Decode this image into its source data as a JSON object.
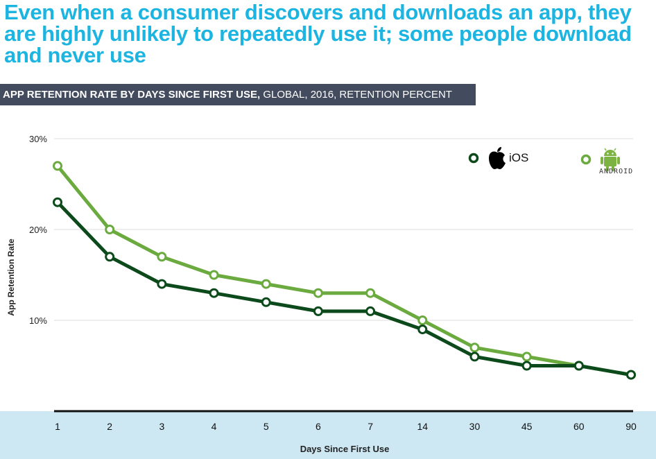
{
  "headline": "Even when a consumer discovers and downloads an app, they are highly unlikely to repeatedly use it; some people download and never use",
  "banner": {
    "bold": "APP RETENTION RATE BY DAYS SINCE FIRST USE,",
    "rest": " GLOBAL, 2016, RETENTION PERCENT"
  },
  "legend": {
    "ios_label": "iOS",
    "android_label": "ANDROID"
  },
  "colors": {
    "ios": "#0c4a1c",
    "android": "#6aaa3e",
    "headline": "#1cb4e0",
    "banner_bg": "#434b5e",
    "footer_bg": "#cde8f3"
  },
  "chart_data": {
    "type": "line",
    "title": "APP RETENTION RATE BY DAYS SINCE FIRST USE, GLOBAL, 2016, RETENTION PERCENT",
    "xlabel": "Days Since First Use",
    "ylabel": "App Retention Rate",
    "categories": [
      "1",
      "2",
      "3",
      "4",
      "5",
      "6",
      "7",
      "14",
      "30",
      "45",
      "60",
      "90"
    ],
    "y_ticks": [
      "10%",
      "20%",
      "30%"
    ],
    "ylim": [
      0,
      30
    ],
    "grid": true,
    "legend_position": "top-right",
    "series": [
      {
        "name": "iOS",
        "values": [
          23,
          17,
          14,
          13,
          12,
          11,
          11,
          9,
          6,
          5,
          5,
          4
        ]
      },
      {
        "name": "ANDROID",
        "values": [
          27,
          20,
          17,
          15,
          14,
          13,
          13,
          10,
          7,
          6,
          5,
          4
        ]
      }
    ]
  }
}
